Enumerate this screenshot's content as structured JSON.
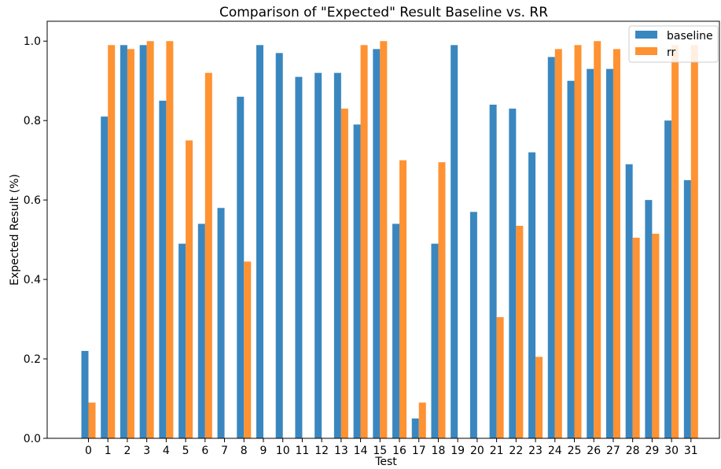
{
  "chart_data": {
    "type": "bar",
    "title": "Comparison of \"Expected\" Result Baseline vs. RR",
    "xlabel": "Test",
    "ylabel": "Expected Result (%)",
    "ylim": [
      0,
      1.05
    ],
    "yticks": [
      "0.0",
      "0.2",
      "0.4",
      "0.6",
      "0.8",
      "1.0"
    ],
    "categories": [
      "0",
      "1",
      "2",
      "3",
      "4",
      "5",
      "6",
      "7",
      "8",
      "9",
      "10",
      "11",
      "12",
      "13",
      "14",
      "15",
      "16",
      "17",
      "18",
      "19",
      "20",
      "21",
      "22",
      "23",
      "24",
      "25",
      "26",
      "27",
      "28",
      "29",
      "30",
      "31"
    ],
    "grid": false,
    "legend_position": "top-right",
    "series": [
      {
        "name": "baseline",
        "color": "#3a87c0",
        "values": [
          0.22,
          0.81,
          0.99,
          0.99,
          0.85,
          0.49,
          0.54,
          0.58,
          0.86,
          0.99,
          0.97,
          0.91,
          0.92,
          0.92,
          0.79,
          0.98,
          0.54,
          0.05,
          0.49,
          0.99,
          0.57,
          0.84,
          0.83,
          0.72,
          0.96,
          0.9,
          0.93,
          0.93,
          0.69,
          0.6,
          0.8,
          0.65
        ]
      },
      {
        "name": "rr",
        "color": "#ff9232",
        "values": [
          0.09,
          0.99,
          0.98,
          1.0,
          1.0,
          0.75,
          0.92,
          null,
          0.445,
          null,
          null,
          null,
          null,
          0.83,
          0.99,
          1.0,
          0.7,
          0.09,
          0.695,
          null,
          null,
          0.305,
          0.535,
          0.205,
          0.98,
          0.99,
          1.0,
          0.98,
          0.505,
          0.515,
          0.99,
          0.99
        ]
      }
    ]
  }
}
